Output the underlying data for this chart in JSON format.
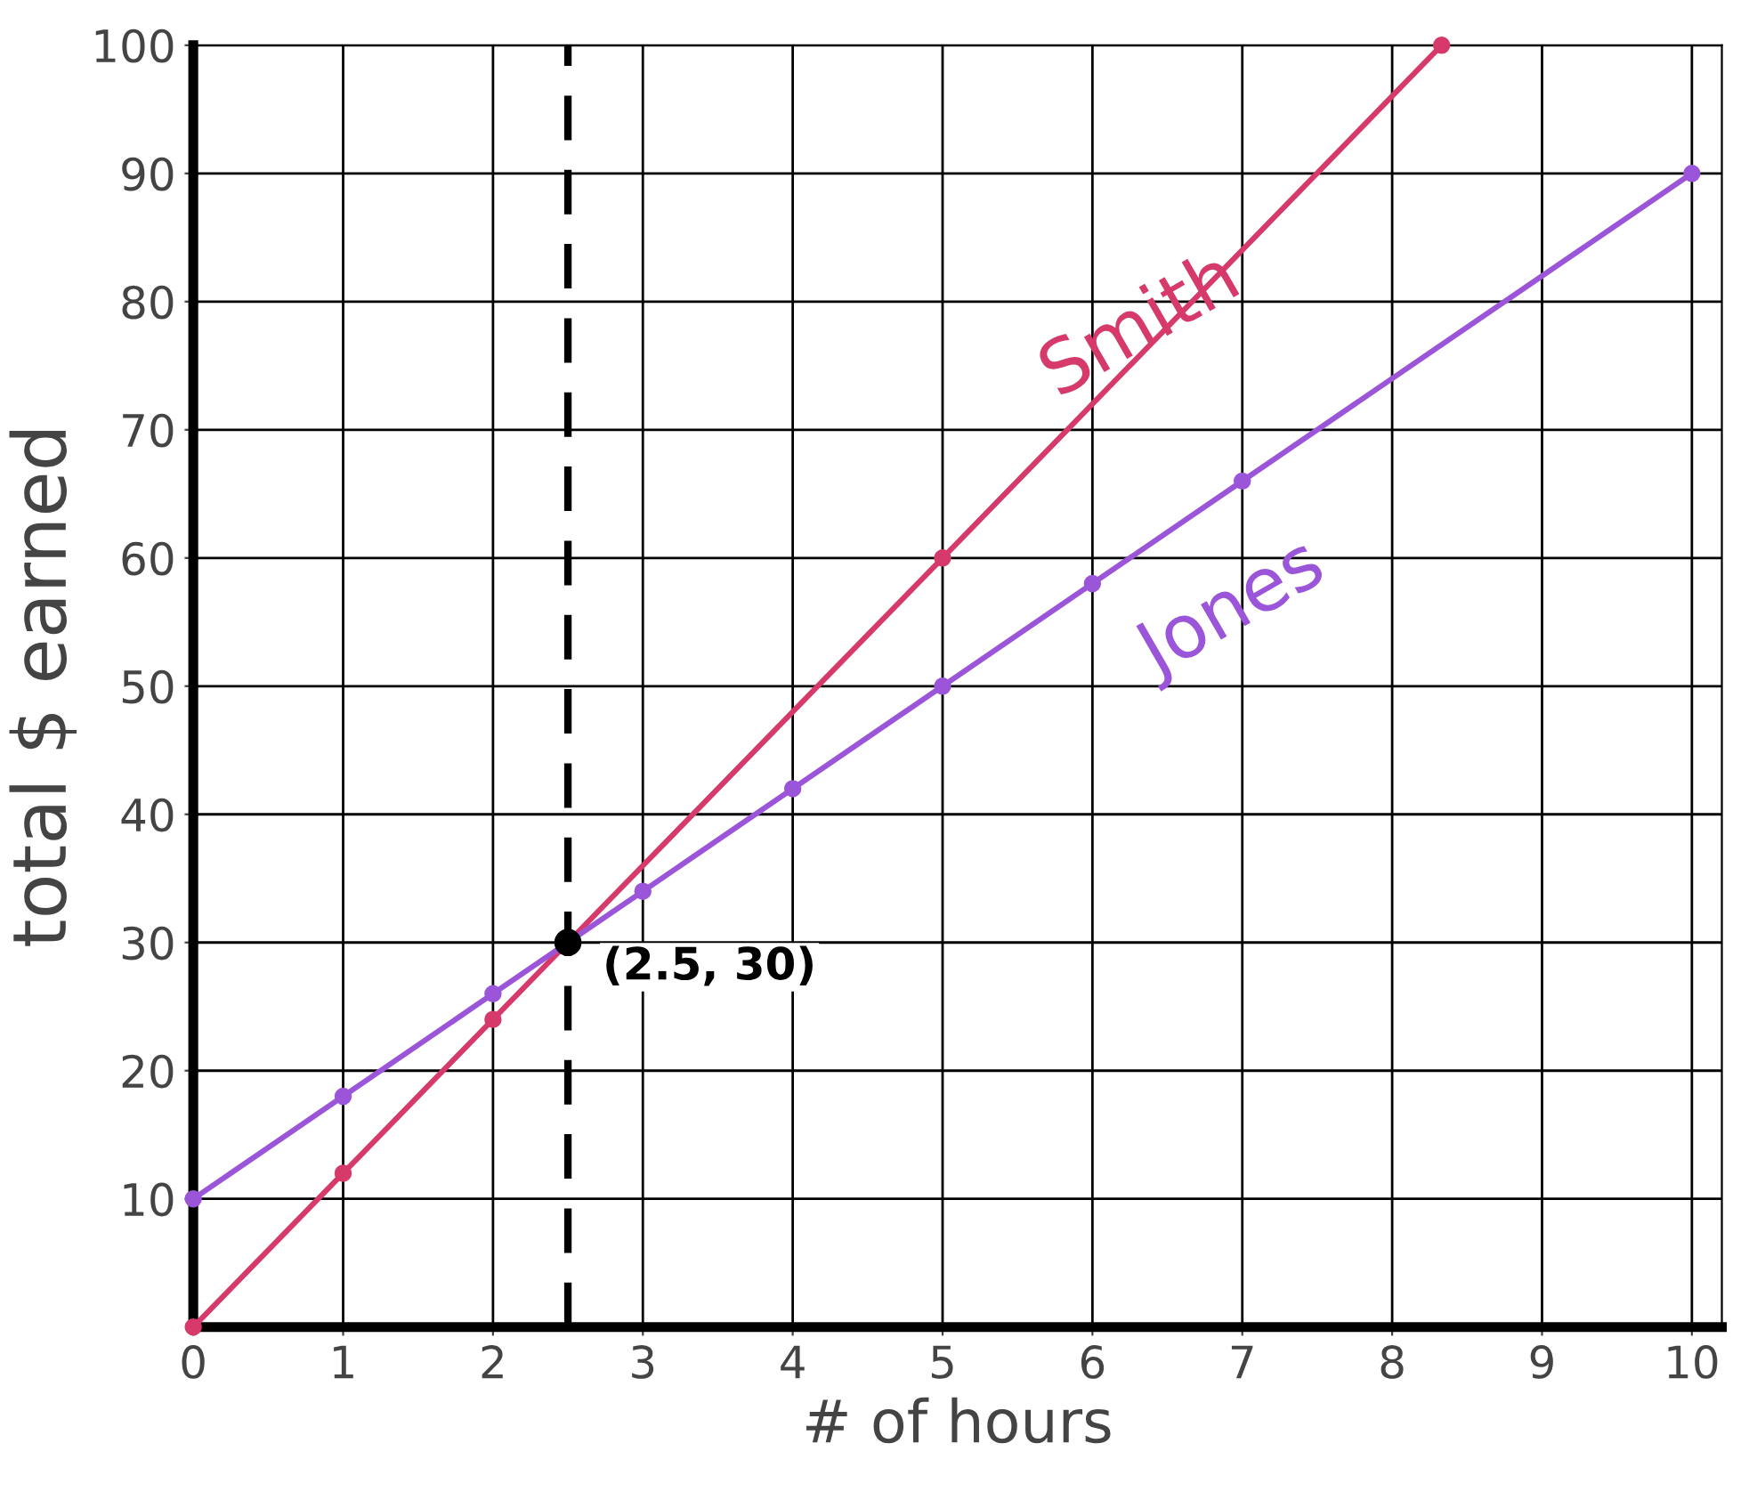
{
  "chart_data": {
    "type": "line",
    "xlabel": "# of hours",
    "ylabel": "total $ earned",
    "xlim": [
      0,
      10.2
    ],
    "ylim": [
      0,
      100
    ],
    "xticks": [
      0,
      1,
      2,
      3,
      4,
      5,
      6,
      7,
      8,
      9,
      10
    ],
    "yticks": [
      10,
      20,
      30,
      40,
      50,
      60,
      70,
      80,
      90,
      100
    ],
    "grid": true,
    "marker": "circle",
    "line_style": "solid",
    "series": [
      {
        "name": "Smith",
        "color": "#d63a6a",
        "x": [
          0,
          1,
          2,
          5,
          8.33
        ],
        "values": [
          0,
          12,
          24,
          60,
          100
        ]
      },
      {
        "name": "Jones",
        "color": "#9b55d9",
        "x": [
          0,
          1,
          2,
          3,
          4,
          5,
          6,
          7,
          10
        ],
        "values": [
          10,
          18,
          26,
          34,
          42,
          50,
          58,
          66,
          90
        ]
      }
    ],
    "ref_lines": [
      {
        "axis": "x",
        "value": 2.5,
        "color": "#000000",
        "line_style": "dashed"
      }
    ],
    "annotations": [
      {
        "text": "(2.5, 30)",
        "x": 2.5,
        "y": 30
      }
    ]
  }
}
